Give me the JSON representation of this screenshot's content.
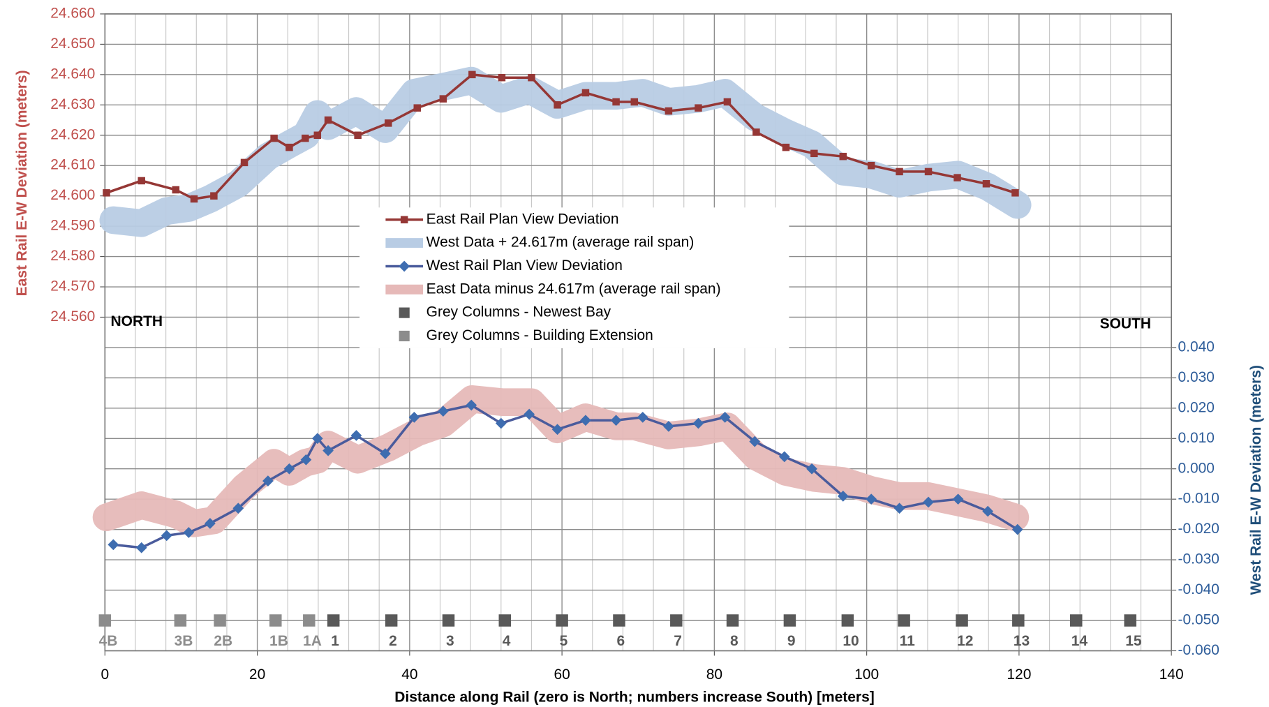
{
  "chart_data": {
    "type": "line",
    "xlabel": "Distance along Rail (zero is North; numbers increase South) [meters]",
    "ylabel": "East Rail E-W Deviation (meters)",
    "y2label": "West Rail E-W Deviation (meters)",
    "annotations": [
      "NORTH",
      "SOUTH"
    ],
    "xlim": [
      0,
      140
    ],
    "xticks": [
      0,
      20,
      40,
      60,
      80,
      100,
      120,
      140
    ],
    "ylim": [
      24.45,
      24.66
    ],
    "yticks": [
      {
        "value": 24.56,
        "label": "24.560"
      },
      {
        "value": 24.57,
        "label": "24.570"
      },
      {
        "value": 24.58,
        "label": "24.580"
      },
      {
        "value": 24.59,
        "label": "24.590"
      },
      {
        "value": 24.6,
        "label": "24.600"
      },
      {
        "value": 24.61,
        "label": "24.610"
      },
      {
        "value": 24.62,
        "label": "24.620"
      },
      {
        "value": 24.63,
        "label": "24.630"
      },
      {
        "value": 24.64,
        "label": "24.640"
      },
      {
        "value": 24.65,
        "label": "24.650"
      },
      {
        "value": 24.66,
        "label": "24.660"
      }
    ],
    "y2lim": [
      -0.06,
      0.15
    ],
    "y2ticks": [
      {
        "value": -0.06,
        "label": "-0.060"
      },
      {
        "value": -0.05,
        "label": "-0.050"
      },
      {
        "value": -0.04,
        "label": "-0.040"
      },
      {
        "value": -0.03,
        "label": "-0.030"
      },
      {
        "value": -0.02,
        "label": "-0.020"
      },
      {
        "value": -0.01,
        "label": "-0.010"
      },
      {
        "value": 0,
        "label": "0.000"
      },
      {
        "value": 0.01,
        "label": "0.010"
      },
      {
        "value": 0.02,
        "label": "0.020"
      },
      {
        "value": 0.03,
        "label": "0.030"
      },
      {
        "value": 0.04,
        "label": "0.040"
      }
    ],
    "grid": true,
    "legend": "center",
    "series": [
      {
        "name": "East Rail Plan View Deviation",
        "color": "#953735",
        "marker": "square",
        "axis": "y",
        "x": [
          0.2,
          4.8,
          9.3,
          11.7,
          14.3,
          18.3,
          22.2,
          24.2,
          26.3,
          27.9,
          29.3,
          33.2,
          37.2,
          41.0,
          44.4,
          48.2,
          52.1,
          56.0,
          59.4,
          63.1,
          67.1,
          69.5,
          74.0,
          77.9,
          81.7,
          85.5,
          89.4,
          93.1,
          96.9,
          100.6,
          104.3,
          108.1,
          111.9,
          115.7,
          119.5
        ],
        "values": [
          24.601,
          24.605,
          24.602,
          24.599,
          24.6,
          24.611,
          24.619,
          24.616,
          24.619,
          24.62,
          24.625,
          24.62,
          24.624,
          24.629,
          24.632,
          24.64,
          24.639,
          24.639,
          24.63,
          24.634,
          24.631,
          24.631,
          24.628,
          24.629,
          24.631,
          24.621,
          24.616,
          24.614,
          24.613,
          24.61,
          24.608,
          24.608,
          24.606,
          24.604,
          24.601
        ]
      },
      {
        "name": "West Data + 24.617m (average rail span)",
        "color": "#b8cce4",
        "style": "band",
        "axis": "y",
        "x": [
          1.1,
          4.8,
          8.1,
          11.0,
          13.8,
          17.5,
          21.4,
          24.2,
          26.4,
          27.9,
          29.3,
          33.0,
          36.8,
          40.6,
          44.4,
          48.1,
          52.0,
          55.7,
          59.4,
          63.1,
          67.1,
          70.6,
          74.0,
          77.9,
          81.4,
          85.3,
          89.2,
          92.8,
          96.9,
          100.6,
          104.3,
          108.1,
          112.0,
          115.9,
          119.8
        ],
        "values": [
          24.592,
          24.591,
          24.595,
          24.596,
          24.599,
          24.604,
          24.613,
          24.617,
          24.62,
          24.627,
          24.623,
          24.628,
          24.622,
          24.634,
          24.636,
          24.638,
          24.632,
          24.635,
          24.63,
          24.633,
          24.633,
          24.634,
          24.631,
          24.632,
          24.634,
          24.626,
          24.621,
          24.617,
          24.608,
          24.607,
          24.604,
          24.606,
          24.607,
          24.603,
          24.597
        ]
      },
      {
        "name": "West Rail Plan View Deviation",
        "color": "#4a5b9c",
        "marker_color": "#3e6db0",
        "marker": "diamond",
        "axis": "y2",
        "x": [
          1.1,
          4.8,
          8.1,
          11.0,
          13.8,
          17.5,
          21.4,
          24.2,
          26.4,
          27.9,
          29.3,
          33.0,
          36.8,
          40.6,
          44.4,
          48.1,
          52.0,
          55.7,
          59.4,
          63.1,
          67.1,
          70.6,
          74.0,
          77.9,
          81.4,
          85.3,
          89.2,
          92.8,
          96.9,
          100.6,
          104.3,
          108.1,
          112.0,
          115.9,
          119.8
        ],
        "values": [
          -0.025,
          -0.026,
          -0.022,
          -0.021,
          -0.018,
          -0.013,
          -0.004,
          0.0,
          0.003,
          0.01,
          0.006,
          0.011,
          0.005,
          0.017,
          0.019,
          0.021,
          0.015,
          0.018,
          0.013,
          0.016,
          0.016,
          0.017,
          0.014,
          0.015,
          0.017,
          0.009,
          0.004,
          0.0,
          -0.009,
          -0.01,
          -0.013,
          -0.011,
          -0.01,
          -0.014,
          -0.02
        ]
      },
      {
        "name": "East Data minus 24.617m (average rail span)",
        "color": "#e6b9b8",
        "style": "band",
        "axis": "y2",
        "x": [
          0.2,
          4.8,
          9.3,
          11.7,
          14.3,
          18.3,
          22.2,
          24.2,
          26.3,
          27.9,
          29.3,
          33.2,
          37.2,
          41.0,
          44.4,
          48.2,
          52.1,
          56.0,
          59.4,
          63.1,
          67.1,
          69.5,
          74.0,
          77.9,
          81.7,
          85.5,
          89.4,
          93.1,
          96.9,
          100.6,
          104.3,
          108.1,
          111.9,
          115.7,
          119.5
        ],
        "values": [
          -0.016,
          -0.012,
          -0.015,
          -0.018,
          -0.017,
          -0.006,
          0.002,
          -0.001,
          0.002,
          0.003,
          0.008,
          0.003,
          0.007,
          0.012,
          0.015,
          0.023,
          0.022,
          0.022,
          0.013,
          0.017,
          0.014,
          0.014,
          0.011,
          0.012,
          0.014,
          0.004,
          -0.001,
          -0.003,
          -0.004,
          -0.007,
          -0.009,
          -0.009,
          -0.011,
          -0.013,
          -0.016
        ]
      },
      {
        "name": "Grey Columns - Newest Bay",
        "color": "#595959",
        "marker": "square",
        "line": false,
        "axis": "y2",
        "x": [
          30.0,
          37.6,
          45.1,
          52.5,
          60.0,
          67.5,
          75.0,
          82.4,
          89.9,
          97.5,
          104.9,
          112.5,
          119.9,
          127.5,
          134.6
        ],
        "values": [
          -0.05,
          -0.05,
          -0.05,
          -0.05,
          -0.05,
          -0.05,
          -0.05,
          -0.05,
          -0.05,
          -0.05,
          -0.05,
          -0.05,
          -0.05,
          -0.05,
          -0.05
        ],
        "labels": [
          "1",
          "2",
          "3",
          "4",
          "5",
          "6",
          "7",
          "8",
          "9",
          "10",
          "11",
          "12",
          "13",
          "14",
          "15"
        ]
      },
      {
        "name": "Grey Columns - Building Extension",
        "color": "#8c8c8c",
        "marker": "square",
        "line": false,
        "axis": "y2",
        "x": [
          0,
          9.9,
          15.1,
          22.4,
          26.8
        ],
        "values": [
          -0.05,
          -0.05,
          -0.05,
          -0.05,
          -0.05
        ],
        "labels": [
          "4B",
          "3B",
          "2B",
          "1B",
          "1A"
        ]
      }
    ]
  }
}
